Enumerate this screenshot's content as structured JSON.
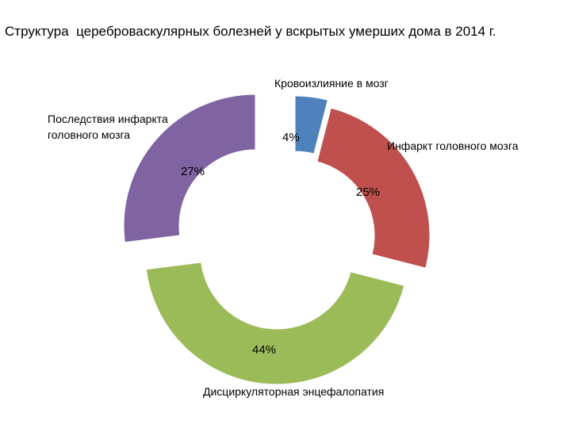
{
  "chart_data": {
    "type": "pie",
    "variant": "doughnut-exploded",
    "title": "Структура  цереброваскулярных болезней у вскрытых умерших дома в 2014 г.",
    "categories": [
      "Кровоизлияние в мозг",
      "Инфаркт головного мозга",
      "Дисциркуляторная энцефалопатия",
      "Последствия инфаркта головного мозга"
    ],
    "label_lines": [
      [
        "Кровоизлияние в мозг"
      ],
      [
        "Инфаркт головного мозга"
      ],
      [
        "Дисциркуляторная энцефалопатия"
      ],
      [
        "Последствия инфаркта",
        "головного мозга"
      ]
    ],
    "values": [
      4,
      25,
      44,
      27
    ],
    "value_labels": [
      "4%",
      "25%",
      "44%",
      "27%"
    ],
    "colors": [
      "#4F81BD",
      "#C0504D",
      "#9BBB59",
      "#8064A2"
    ],
    "legend": "none"
  }
}
